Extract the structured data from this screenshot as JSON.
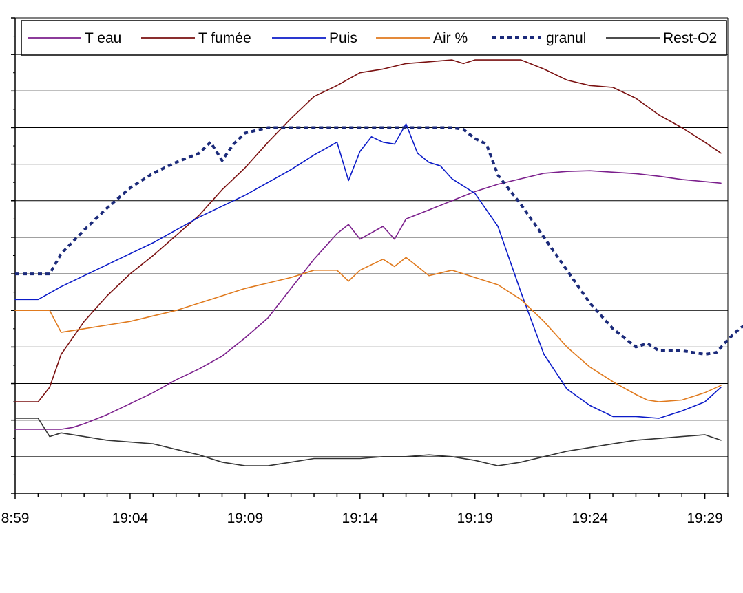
{
  "chart_data": {
    "type": "line",
    "title": "",
    "xlabel": "",
    "ylabel": "",
    "x_tick_labels": [
      "8:59",
      "19:04",
      "19:09",
      "19:14",
      "19:19",
      "19:24",
      "19:29"
    ],
    "x_range": [
      0,
      31
    ],
    "y_range": [
      0,
      13
    ],
    "y_tick_labels_visible": false,
    "grid": {
      "horizontal": true,
      "vertical": false
    },
    "legend": {
      "placement": "top",
      "boxed": true
    },
    "series": [
      {
        "name": "T eau",
        "color": "#7B1F8C",
        "style": "solid",
        "points": [
          [
            0,
            1.75
          ],
          [
            1,
            1.75
          ],
          [
            2,
            1.75
          ],
          [
            2.5,
            1.8
          ],
          [
            3,
            1.9
          ],
          [
            4,
            2.15
          ],
          [
            5,
            2.45
          ],
          [
            6,
            2.75
          ],
          [
            7,
            3.1
          ],
          [
            8,
            3.4
          ],
          [
            9,
            3.75
          ],
          [
            10,
            4.25
          ],
          [
            11,
            4.8
          ],
          [
            12,
            5.6
          ],
          [
            13,
            6.4
          ],
          [
            14,
            7.1
          ],
          [
            14.5,
            7.35
          ],
          [
            15,
            6.95
          ],
          [
            16,
            7.3
          ],
          [
            16.5,
            6.95
          ],
          [
            17,
            7.5
          ],
          [
            18,
            7.75
          ],
          [
            19,
            8.0
          ],
          [
            20,
            8.25
          ],
          [
            21,
            8.45
          ],
          [
            22,
            8.6
          ],
          [
            23,
            8.75
          ],
          [
            24,
            8.8
          ],
          [
            25,
            8.82
          ],
          [
            26,
            8.78
          ],
          [
            27,
            8.74
          ],
          [
            28,
            8.67
          ],
          [
            29,
            8.58
          ],
          [
            30,
            8.52
          ],
          [
            30.7,
            8.48
          ]
        ]
      },
      {
        "name": "T fumée",
        "color": "#7A1010",
        "style": "solid",
        "points": [
          [
            0,
            2.5
          ],
          [
            1,
            2.5
          ],
          [
            1.5,
            2.9
          ],
          [
            2,
            3.8
          ],
          [
            3,
            4.7
          ],
          [
            4,
            5.4
          ],
          [
            5,
            6.0
          ],
          [
            6,
            6.5
          ],
          [
            7,
            7.05
          ],
          [
            8,
            7.6
          ],
          [
            9,
            8.3
          ],
          [
            10,
            8.9
          ],
          [
            11,
            9.6
          ],
          [
            12,
            10.25
          ],
          [
            13,
            10.85
          ],
          [
            14,
            11.15
          ],
          [
            15,
            11.5
          ],
          [
            16,
            11.6
          ],
          [
            17,
            11.75
          ],
          [
            18,
            11.8
          ],
          [
            19,
            11.85
          ],
          [
            19.5,
            11.75
          ],
          [
            20,
            11.85
          ],
          [
            21,
            11.85
          ],
          [
            22,
            11.85
          ],
          [
            23,
            11.6
          ],
          [
            24,
            11.3
          ],
          [
            25,
            11.15
          ],
          [
            26,
            11.1
          ],
          [
            27,
            10.8
          ],
          [
            28,
            10.35
          ],
          [
            29,
            10.0
          ],
          [
            30,
            9.6
          ],
          [
            30.7,
            9.3
          ]
        ]
      },
      {
        "name": "Puis",
        "color": "#0B1BC8",
        "style": "solid",
        "points": [
          [
            0,
            5.3
          ],
          [
            1,
            5.3
          ],
          [
            2,
            5.65
          ],
          [
            3,
            5.95
          ],
          [
            4,
            6.25
          ],
          [
            5,
            6.55
          ],
          [
            6,
            6.85
          ],
          [
            7,
            7.2
          ],
          [
            8,
            7.55
          ],
          [
            9,
            7.85
          ],
          [
            10,
            8.15
          ],
          [
            11,
            8.5
          ],
          [
            12,
            8.85
          ],
          [
            13,
            9.25
          ],
          [
            14,
            9.6
          ],
          [
            14.5,
            8.55
          ],
          [
            15,
            9.35
          ],
          [
            15.5,
            9.75
          ],
          [
            16,
            9.6
          ],
          [
            16.5,
            9.55
          ],
          [
            17,
            10.1
          ],
          [
            17.5,
            9.3
          ],
          [
            18,
            9.05
          ],
          [
            18.5,
            8.95
          ],
          [
            19,
            8.6
          ],
          [
            20,
            8.2
          ],
          [
            21,
            7.3
          ],
          [
            22,
            5.5
          ],
          [
            23,
            3.8
          ],
          [
            24,
            2.85
          ],
          [
            25,
            2.4
          ],
          [
            26,
            2.1
          ],
          [
            27,
            2.1
          ],
          [
            28,
            2.05
          ],
          [
            29,
            2.25
          ],
          [
            30,
            2.5
          ],
          [
            30.7,
            2.9
          ]
        ]
      },
      {
        "name": "Air %",
        "color": "#E07A1E",
        "style": "solid",
        "points": [
          [
            0,
            5.0
          ],
          [
            1,
            5.0
          ],
          [
            1.5,
            5.0
          ],
          [
            2,
            4.4
          ],
          [
            3,
            4.5
          ],
          [
            4,
            4.6
          ],
          [
            5,
            4.7
          ],
          [
            6,
            4.85
          ],
          [
            7,
            5.0
          ],
          [
            8,
            5.2
          ],
          [
            9,
            5.4
          ],
          [
            10,
            5.6
          ],
          [
            11,
            5.75
          ],
          [
            12,
            5.9
          ],
          [
            13,
            6.1
          ],
          [
            14,
            6.1
          ],
          [
            14.5,
            5.8
          ],
          [
            15,
            6.1
          ],
          [
            16,
            6.4
          ],
          [
            16.5,
            6.2
          ],
          [
            17,
            6.45
          ],
          [
            17.5,
            6.2
          ],
          [
            18,
            5.95
          ],
          [
            19,
            6.1
          ],
          [
            20,
            5.9
          ],
          [
            21,
            5.7
          ],
          [
            22,
            5.3
          ],
          [
            23,
            4.7
          ],
          [
            24,
            4.0
          ],
          [
            25,
            3.45
          ],
          [
            26,
            3.05
          ],
          [
            27,
            2.7
          ],
          [
            27.5,
            2.55
          ],
          [
            28,
            2.5
          ],
          [
            29,
            2.55
          ],
          [
            30,
            2.75
          ],
          [
            30.7,
            2.95
          ]
        ]
      },
      {
        "name": "granul",
        "color": "#1B2A7A",
        "style": "dotted",
        "points": [
          [
            0,
            6.0
          ],
          [
            1,
            6.0
          ],
          [
            1.5,
            6.0
          ],
          [
            2,
            6.55
          ],
          [
            3,
            7.2
          ],
          [
            4,
            7.8
          ],
          [
            5,
            8.35
          ],
          [
            6,
            8.75
          ],
          [
            7,
            9.05
          ],
          [
            8,
            9.3
          ],
          [
            8.5,
            9.6
          ],
          [
            9,
            9.1
          ],
          [
            9.5,
            9.55
          ],
          [
            10,
            9.85
          ],
          [
            11,
            10.0
          ],
          [
            12,
            10.0
          ],
          [
            13,
            10.0
          ],
          [
            14,
            10.0
          ],
          [
            15,
            10.0
          ],
          [
            16,
            10.0
          ],
          [
            17,
            10.0
          ],
          [
            18,
            10.0
          ],
          [
            19,
            10.0
          ],
          [
            19.5,
            9.95
          ],
          [
            20,
            9.7
          ],
          [
            20.5,
            9.55
          ],
          [
            21,
            8.7
          ],
          [
            22,
            7.9
          ],
          [
            23,
            7.0
          ],
          [
            24,
            6.1
          ],
          [
            25,
            5.2
          ],
          [
            26,
            4.5
          ],
          [
            27,
            4.0
          ],
          [
            27.5,
            4.1
          ],
          [
            28,
            3.9
          ],
          [
            29,
            3.9
          ],
          [
            30,
            3.8
          ],
          [
            30.5,
            3.85
          ],
          [
            31,
            4.2
          ],
          [
            31.5,
            4.5
          ],
          [
            32,
            4.7
          ]
        ]
      },
      {
        "name": "Rest-O2",
        "color": "#333333",
        "style": "solid",
        "points": [
          [
            0,
            2.05
          ],
          [
            1,
            2.05
          ],
          [
            1.5,
            1.55
          ],
          [
            2,
            1.65
          ],
          [
            3,
            1.55
          ],
          [
            4,
            1.45
          ],
          [
            5,
            1.4
          ],
          [
            6,
            1.35
          ],
          [
            7,
            1.2
          ],
          [
            8,
            1.05
          ],
          [
            9,
            0.85
          ],
          [
            10,
            0.75
          ],
          [
            11,
            0.75
          ],
          [
            12,
            0.85
          ],
          [
            13,
            0.95
          ],
          [
            14,
            0.95
          ],
          [
            15,
            0.95
          ],
          [
            16,
            1.0
          ],
          [
            17,
            1.0
          ],
          [
            18,
            1.05
          ],
          [
            19,
            1.0
          ],
          [
            20,
            0.9
          ],
          [
            21,
            0.75
          ],
          [
            22,
            0.85
          ],
          [
            23,
            1.0
          ],
          [
            24,
            1.15
          ],
          [
            25,
            1.25
          ],
          [
            26,
            1.35
          ],
          [
            27,
            1.45
          ],
          [
            28,
            1.5
          ],
          [
            29,
            1.55
          ],
          [
            30,
            1.6
          ],
          [
            30.7,
            1.45
          ]
        ]
      }
    ]
  }
}
